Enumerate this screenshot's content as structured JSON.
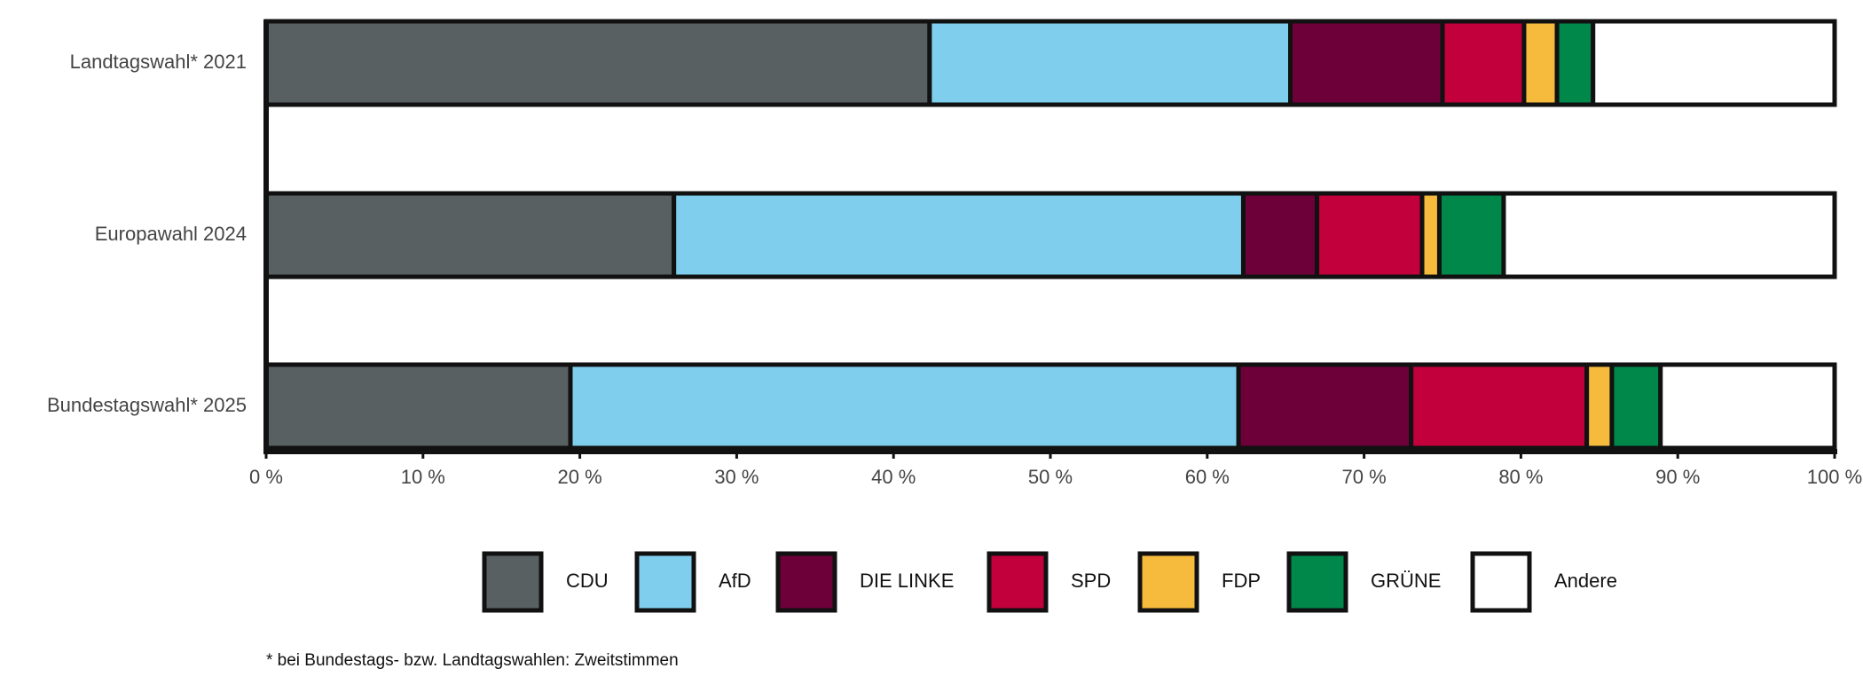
{
  "chart_data": {
    "type": "stacked_barh",
    "categories": [
      "Landtagswahl* 2021",
      "Europawahl 2024",
      "Bundestagswahl* 2025"
    ],
    "series": [
      {
        "name": "CDU",
        "color": "#586062",
        "values": [
          42.3,
          26.0,
          19.4
        ]
      },
      {
        "name": "AfD",
        "color": "#80ceed",
        "values": [
          23.0,
          36.3,
          42.6
        ]
      },
      {
        "name": "DIE LINKE",
        "color": "#6e0039",
        "values": [
          9.7,
          4.7,
          11.0
        ]
      },
      {
        "name": "SPD",
        "color": "#c2003b",
        "values": [
          5.2,
          6.7,
          11.2
        ]
      },
      {
        "name": "FDP",
        "color": "#f6bb3d",
        "values": [
          2.1,
          1.1,
          1.6
        ]
      },
      {
        "name": "GRÜNE",
        "color": "#00874a",
        "values": [
          2.3,
          4.1,
          3.1
        ]
      },
      {
        "name": "Andere",
        "color": "#ffffff",
        "values": [
          15.4,
          21.1,
          11.1
        ]
      }
    ],
    "xlim": [
      0,
      100
    ],
    "xticks": [
      {
        "value": 0,
        "label": "0 %"
      },
      {
        "value": 10,
        "label": "10 %"
      },
      {
        "value": 20,
        "label": "20 %"
      },
      {
        "value": 30,
        "label": "30 %"
      },
      {
        "value": 40,
        "label": "40 %"
      },
      {
        "value": 50,
        "label": "50 %"
      },
      {
        "value": 60,
        "label": "60 %"
      },
      {
        "value": 70,
        "label": "70 %"
      },
      {
        "value": 80,
        "label": "80 %"
      },
      {
        "value": 90,
        "label": "90 %"
      },
      {
        "value": 100,
        "label": "100 %"
      }
    ],
    "legend": "bottom",
    "footnote": "* bei Bundestags- bzw. Landtagswahlen: Zweitstimmen"
  }
}
